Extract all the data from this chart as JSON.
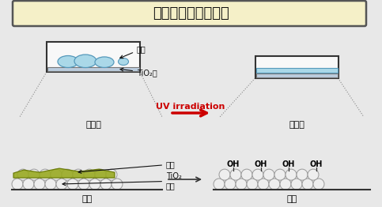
{
  "title": "超親水性の作用機構",
  "title_bg": "#f5f0c8",
  "title_border": "#555555",
  "bg_color": "#e8e8e8",
  "uv_arrow_color": "#cc0000",
  "uv_text": "UV irradiation",
  "water_drop_color": "#aad8e8",
  "tio2_layer_color": "#bbccdd",
  "particle_color": "#eeeeee",
  "dirt_color": "#99aa22",
  "left_label": "拡大図",
  "right_label": "拡大図",
  "label_kizai_left": "基材",
  "label_kizai_right": "基材",
  "label_mizutama": "水滴",
  "label_tio2_layer": "TiO₂層",
  "label_yogore": "汚れ",
  "label_tio2_particle_line1": "TiO₂",
  "label_tio2_particle_line2": "粒子",
  "label_oh": "OH",
  "fig_w": 4.83,
  "fig_h": 2.62,
  "dpi": 100
}
